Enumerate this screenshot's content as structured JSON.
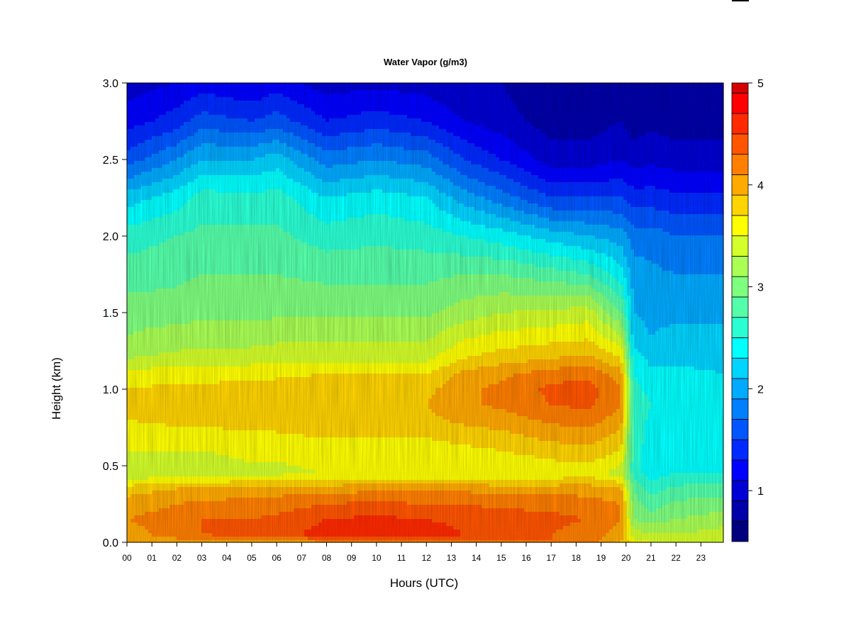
{
  "chart_data": {
    "type": "heatmap",
    "title": "Water Vapor (g/m3)",
    "xlabel": "Hours (UTC)",
    "ylabel": "Height (km)",
    "x_ticks": [
      "00",
      "01",
      "02",
      "03",
      "04",
      "05",
      "06",
      "07",
      "08",
      "09",
      "10",
      "11",
      "12",
      "13",
      "14",
      "15",
      "16",
      "17",
      "18",
      "19",
      "20",
      "21",
      "22",
      "23"
    ],
    "xlim": [
      0,
      23.9
    ],
    "y_ticks": [
      "0.0",
      "0.5",
      "1.0",
      "1.5",
      "2.0",
      "2.5",
      "3.0"
    ],
    "ylim": [
      0,
      3.0
    ],
    "colorbar": {
      "min": 0.5,
      "max": 5.0,
      "step": 0.2,
      "ticks": [
        "1",
        "2",
        "3",
        "4",
        "5"
      ],
      "colors": [
        "#00007F",
        "#0000AA",
        "#0000D4",
        "#0000FF",
        "#002AFF",
        "#0055FF",
        "#007FFF",
        "#00AAFF",
        "#00D4FF",
        "#00FFFF",
        "#2AFFD4",
        "#55FFAA",
        "#7FFF7F",
        "#AAFF55",
        "#D4FF2A",
        "#FFFF00",
        "#FFD400",
        "#FFAA00",
        "#FF7F00",
        "#FF5500",
        "#FF2A00",
        "#FF0000",
        "#D40000",
        "#AA0000",
        "#7F0000"
      ]
    },
    "profile_heights_km": [
      0.0,
      0.05,
      0.15,
      0.25,
      0.35,
      0.45,
      0.6,
      0.8,
      0.9,
      1.0,
      1.1,
      1.2,
      1.35,
      1.5,
      1.75,
      2.0,
      2.25,
      2.5,
      2.75,
      3.0
    ],
    "profiles": [
      {
        "hour": 0,
        "values": [
          3.9,
          4.0,
          4.1,
          4.0,
          3.8,
          3.3,
          3.5,
          3.7,
          3.75,
          3.7,
          3.6,
          3.3,
          3.1,
          3.0,
          2.8,
          2.6,
          2.2,
          1.6,
          1.2,
          1.0
        ]
      },
      {
        "hour": 2,
        "values": [
          4.0,
          4.2,
          4.2,
          4.1,
          3.9,
          3.4,
          3.5,
          3.75,
          3.8,
          3.75,
          3.6,
          3.35,
          3.2,
          3.0,
          2.85,
          2.7,
          2.4,
          1.9,
          1.4,
          1.1
        ]
      },
      {
        "hour": 3,
        "values": [
          4.0,
          4.3,
          4.3,
          4.15,
          3.9,
          3.4,
          3.5,
          3.75,
          3.8,
          3.75,
          3.6,
          3.4,
          3.2,
          3.05,
          2.9,
          2.75,
          2.6,
          2.1,
          1.6,
          1.2
        ]
      },
      {
        "hour": 5,
        "values": [
          4.0,
          4.35,
          4.3,
          4.2,
          3.95,
          3.45,
          3.55,
          3.8,
          3.85,
          3.8,
          3.65,
          3.4,
          3.2,
          3.05,
          2.9,
          2.75,
          2.55,
          2.1,
          1.5,
          1.1
        ]
      },
      {
        "hour": 6,
        "values": [
          4.0,
          4.4,
          4.35,
          4.2,
          4.0,
          3.45,
          3.55,
          3.8,
          3.85,
          3.8,
          3.65,
          3.4,
          3.25,
          3.05,
          2.9,
          2.75,
          2.6,
          2.2,
          1.6,
          1.2
        ]
      },
      {
        "hour": 8,
        "values": [
          4.1,
          4.6,
          4.5,
          4.3,
          4.0,
          3.5,
          3.6,
          3.85,
          3.9,
          3.85,
          3.7,
          3.45,
          3.25,
          3.05,
          2.85,
          2.6,
          2.3,
          1.8,
          1.3,
          1.0
        ]
      },
      {
        "hour": 10,
        "values": [
          4.1,
          4.65,
          4.55,
          4.35,
          4.05,
          3.5,
          3.6,
          3.85,
          3.9,
          3.85,
          3.7,
          3.45,
          3.25,
          3.05,
          2.85,
          2.65,
          2.4,
          1.9,
          1.4,
          1.05
        ]
      },
      {
        "hour": 12,
        "values": [
          4.1,
          4.6,
          4.5,
          4.3,
          4.05,
          3.5,
          3.6,
          3.85,
          3.9,
          3.85,
          3.7,
          3.45,
          3.25,
          3.05,
          2.85,
          2.6,
          2.3,
          1.8,
          1.3,
          1.0
        ]
      },
      {
        "hour": 13.5,
        "values": [
          4.1,
          4.5,
          4.45,
          4.3,
          4.05,
          3.5,
          3.65,
          3.95,
          4.05,
          4.05,
          3.95,
          3.7,
          3.45,
          3.2,
          2.9,
          2.5,
          2.0,
          1.5,
          1.1,
          0.9
        ]
      },
      {
        "hour": 15,
        "values": [
          4.2,
          4.4,
          4.4,
          4.25,
          4.0,
          3.5,
          3.7,
          4.0,
          4.15,
          4.15,
          4.05,
          3.8,
          3.55,
          3.3,
          2.9,
          2.4,
          1.8,
          1.3,
          1.0,
          0.9
        ]
      },
      {
        "hour": 17,
        "values": [
          4.3,
          4.3,
          4.35,
          4.25,
          4.0,
          3.55,
          3.8,
          4.15,
          4.3,
          4.35,
          4.2,
          3.9,
          3.6,
          3.35,
          2.8,
          2.2,
          1.5,
          1.0,
          0.8,
          0.7
        ]
      },
      {
        "hour": 18.5,
        "values": [
          4.2,
          4.2,
          4.3,
          4.2,
          4.0,
          3.6,
          3.85,
          4.2,
          4.35,
          4.4,
          4.25,
          3.95,
          3.65,
          3.4,
          2.7,
          2.1,
          1.5,
          1.0,
          0.8,
          0.7
        ]
      },
      {
        "hour": 19.8,
        "values": [
          3.9,
          4.0,
          4.1,
          4.1,
          3.9,
          3.4,
          3.7,
          4.0,
          4.1,
          4.1,
          4.0,
          3.7,
          3.3,
          2.9,
          2.4,
          2.0,
          1.5,
          1.1,
          0.9,
          0.8
        ]
      },
      {
        "hour": 20.3,
        "values": [
          3.6,
          3.4,
          3.1,
          3.0,
          2.9,
          2.6,
          2.6,
          2.65,
          2.7,
          2.6,
          2.5,
          2.4,
          2.2,
          2.1,
          2.0,
          1.8,
          1.4,
          1.0,
          0.8,
          0.7
        ]
      },
      {
        "hour": 21,
        "values": [
          3.5,
          3.3,
          3.0,
          2.8,
          2.6,
          2.4,
          2.4,
          2.45,
          2.5,
          2.4,
          2.35,
          2.25,
          2.1,
          2.05,
          1.95,
          1.8,
          1.4,
          1.05,
          0.85,
          0.75
        ]
      },
      {
        "hour": 22,
        "values": [
          3.4,
          3.3,
          3.1,
          2.95,
          2.75,
          2.5,
          2.45,
          2.45,
          2.45,
          2.4,
          2.35,
          2.25,
          2.15,
          2.05,
          1.9,
          1.7,
          1.35,
          1.0,
          0.8,
          0.7
        ]
      },
      {
        "hour": 23.9,
        "values": [
          3.5,
          3.4,
          3.2,
          3.0,
          2.8,
          2.5,
          2.45,
          2.4,
          2.4,
          2.35,
          2.3,
          2.25,
          2.15,
          2.05,
          1.9,
          1.7,
          1.35,
          1.0,
          0.8,
          0.7
        ]
      }
    ]
  }
}
